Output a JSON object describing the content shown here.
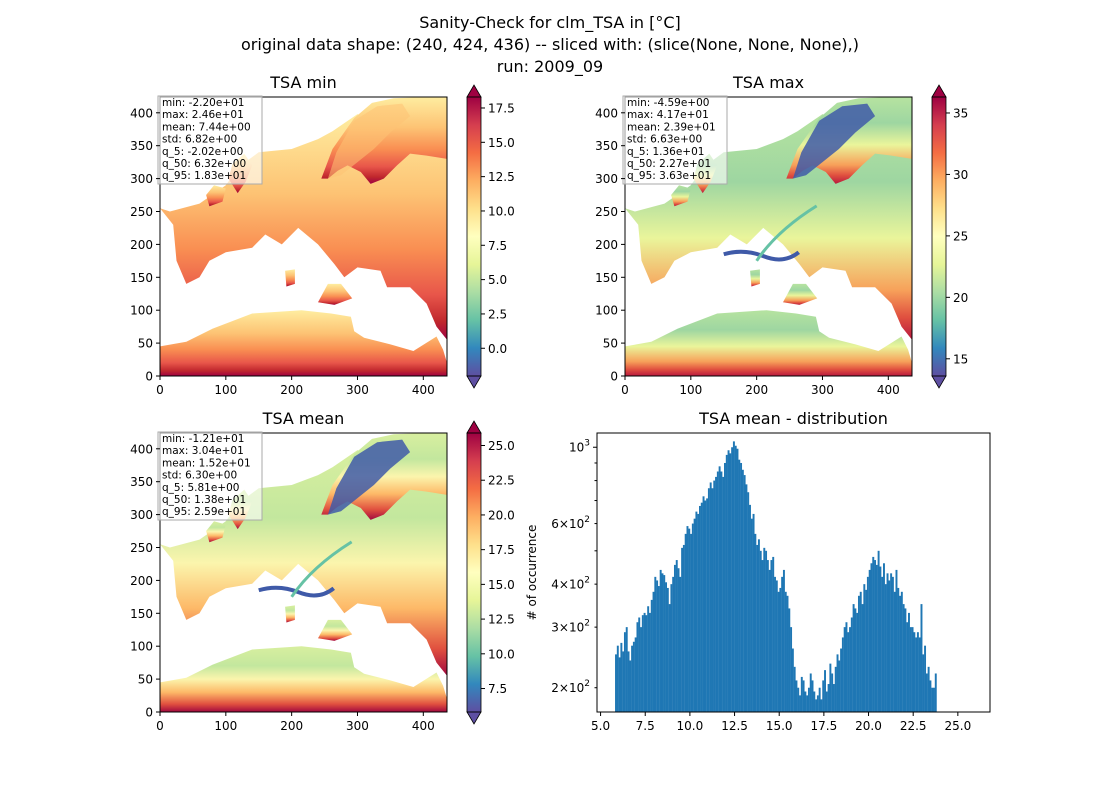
{
  "figure": {
    "title_lines": [
      "Sanity-Check for clm_TSA in [°C]",
      "original data shape: (240, 424, 436) -- sliced with: (slice(None, None, None),)",
      "run: 2009_09"
    ]
  },
  "chart_data": [
    {
      "type": "heatmap",
      "title": "TSA min",
      "xlim": [
        0,
        436
      ],
      "ylim": [
        0,
        424
      ],
      "xticks": [
        0,
        100,
        200,
        300,
        400
      ],
      "yticks": [
        0,
        50,
        100,
        150,
        200,
        250,
        300,
        350,
        400
      ],
      "colormap": "Spectral_r",
      "colorbar": {
        "ticks": [
          0.0,
          2.5,
          5.0,
          7.5,
          10.0,
          12.5,
          15.0,
          17.5
        ],
        "range": [
          -2.02,
          18.3
        ],
        "extend": "both"
      },
      "stats": [
        "min: -2.20e+01",
        "max: 2.46e+01",
        "mean: 7.44e+00",
        "std: 6.82e+00",
        "q_5: -2.02e+00",
        "q_50: 6.32e+00",
        "q_95: 1.83e+01"
      ]
    },
    {
      "type": "heatmap",
      "title": "TSA max",
      "xlim": [
        0,
        436
      ],
      "ylim": [
        0,
        424
      ],
      "xticks": [
        0,
        100,
        200,
        300,
        400
      ],
      "yticks": [
        0,
        50,
        100,
        150,
        200,
        250,
        300,
        350,
        400
      ],
      "colormap": "Spectral_r",
      "colorbar": {
        "ticks": [
          15,
          20,
          25,
          30,
          35
        ],
        "range": [
          13.6,
          36.3
        ],
        "extend": "both"
      },
      "stats": [
        "min: -4.59e+00",
        "max: 4.17e+01",
        "mean: 2.39e+01",
        "std: 6.63e+00",
        "q_5: 1.36e+01",
        "q_50: 2.27e+01",
        "q_95: 3.63e+01"
      ]
    },
    {
      "type": "heatmap",
      "title": "TSA mean",
      "xlim": [
        0,
        436
      ],
      "ylim": [
        0,
        424
      ],
      "xticks": [
        0,
        100,
        200,
        300,
        400
      ],
      "yticks": [
        0,
        50,
        100,
        150,
        200,
        250,
        300,
        350,
        400
      ],
      "colormap": "Spectral_r",
      "colorbar": {
        "ticks": [
          7.5,
          10.0,
          12.5,
          15.0,
          17.5,
          20.0,
          22.5,
          25.0
        ],
        "range": [
          5.81,
          25.9
        ],
        "extend": "both"
      },
      "stats": [
        "min: -1.21e+01",
        "max: 3.04e+01",
        "mean: 1.52e+01",
        "std: 6.30e+00",
        "q_5: 5.81e+00",
        "q_50: 1.38e+01",
        "q_95: 2.59e+01"
      ]
    },
    {
      "type": "bar",
      "title": "TSA mean - distribution",
      "xlabel": "",
      "ylabel": "# of occurrence",
      "xlim": [
        4.8,
        26.8
      ],
      "ylim": [
        170,
        1100
      ],
      "yscale": "log",
      "xticks": [
        5.0,
        7.5,
        10.0,
        12.5,
        15.0,
        17.5,
        20.0,
        22.5,
        25.0
      ],
      "xtick_labels": [
        "5.0",
        "7.5",
        "10.0",
        "12.5",
        "15.0",
        "17.5",
        "20.0",
        "22.5",
        "25.0"
      ],
      "ytick_major": [
        1000
      ],
      "ytick_major_labels": [
        [
          "10",
          "3"
        ]
      ],
      "ytick_minor": [
        200,
        300,
        400,
        600
      ],
      "ytick_minor_labels": [
        [
          "2×10",
          "2"
        ],
        [
          "3×10",
          "2"
        ],
        [
          "4×10",
          "2"
        ],
        [
          "6×10",
          "2"
        ]
      ],
      "bar_color": "#1f77b4",
      "bin_start": 5.81,
      "bin_width": 0.1,
      "counts": [
        250,
        265,
        245,
        270,
        255,
        290,
        300,
        255,
        240,
        265,
        272,
        280,
        310,
        320,
        300,
        325,
        330,
        325,
        345,
        330,
        360,
        380,
        420,
        410,
        395,
        440,
        430,
        425,
        405,
        390,
        350,
        400,
        420,
        455,
        470,
        445,
        420,
        510,
        520,
        560,
        590,
        580,
        560,
        600,
        620,
        650,
        640,
        675,
        690,
        720,
        700,
        710,
        760,
        790,
        760,
        800,
        820,
        850,
        880,
        850,
        820,
        900,
        950,
        980,
        960,
        1000,
        1040,
        1010,
        990,
        920,
        900,
        860,
        830,
        780,
        740,
        680,
        620,
        640,
        560,
        520,
        540,
        500,
        470,
        510,
        500,
        470,
        440,
        470,
        480,
        420,
        410,
        380,
        390,
        420,
        440,
        380,
        370,
        340,
        300,
        260,
        230,
        210,
        200,
        190,
        215,
        210,
        195,
        190,
        200,
        220,
        210,
        195,
        185,
        190,
        200,
        185,
        210,
        225,
        195,
        205,
        235,
        220,
        205,
        230,
        250,
        240,
        260,
        280,
        300,
        310,
        290,
        300,
        320,
        350,
        340,
        330,
        370,
        380,
        350,
        400,
        385,
        420,
        440,
        460,
        480,
        470,
        455,
        500,
        450,
        420,
        460,
        400,
        430,
        410,
        430,
        420,
        380,
        440,
        390,
        370,
        380,
        350,
        340,
        310,
        330,
        300,
        300,
        290,
        280,
        290,
        280,
        350,
        250,
        265,
        220,
        230,
        210,
        200,
        200,
        220
      ]
    }
  ]
}
